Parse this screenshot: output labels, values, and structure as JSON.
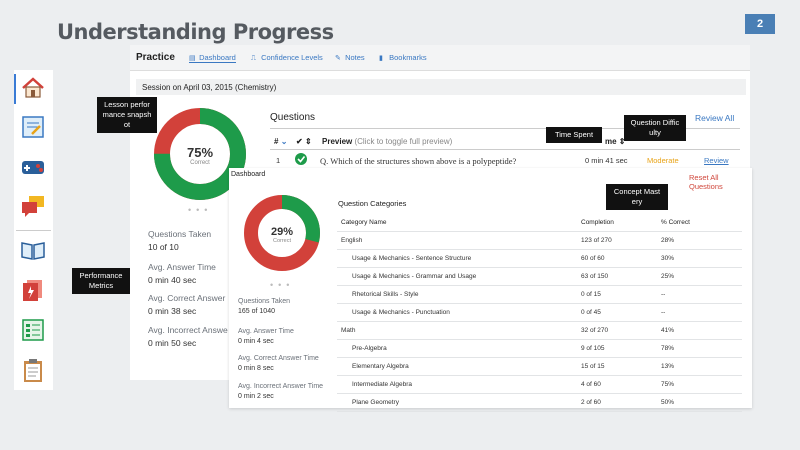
{
  "slide": {
    "title": "Understanding Progress",
    "page_number": "2"
  },
  "rail": {
    "icons": [
      "home-icon",
      "notepad-icon",
      "game-controller-icon",
      "chat-bubbles-icon",
      "open-book-icon",
      "flashcard-icon",
      "checklist-icon",
      "clipboard-icon"
    ]
  },
  "practice": {
    "title": "Practice",
    "tabs": [
      {
        "label": "Dashboard",
        "icon": "dashboard-icon"
      },
      {
        "label": "Confidence Levels",
        "icon": "confidence-icon"
      },
      {
        "label": "Notes",
        "icon": "pencil-icon"
      },
      {
        "label": "Bookmarks",
        "icon": "bookmark-icon"
      }
    ],
    "session": "Session on April 03, 2015 (Chemistry)",
    "donut": {
      "percent_text": "75%",
      "sublabel": "Correct",
      "value": 0.75
    },
    "stats": [
      {
        "label": "Questions Taken",
        "value": "10 of 10"
      },
      {
        "label": "Avg. Answer Time",
        "value": "0 min 40 sec"
      },
      {
        "label": "Avg. Correct Answer",
        "value": "0 min 38 sec"
      },
      {
        "label": "Avg. Incorrect Answe",
        "value": "0 min 50 sec"
      }
    ],
    "questions": {
      "title": "Questions",
      "review_all": "Review All",
      "col_num": "#",
      "col_check": "✔",
      "col_preview": "Preview",
      "col_preview_hint": "(Click to toggle full preview)",
      "col_time": "me",
      "row": {
        "num": "1",
        "text": "Q. Which of the structures shown above is a polypeptide?",
        "time": "0 min 41 sec",
        "difficulty": "Moderate",
        "action": "Review"
      }
    }
  },
  "dashboard": {
    "label": "Dashboard",
    "reset": "Reset All Questions",
    "donut": {
      "percent_text": "29%",
      "sublabel": "Correct",
      "value": 0.29
    },
    "stats": [
      {
        "label": "Questions Taken",
        "value": "165 of 1040"
      },
      {
        "label": "Avg. Answer Time",
        "value": "0 min 4 sec"
      },
      {
        "label": "Avg. Correct Answer Time",
        "value": "0 min 8 sec"
      },
      {
        "label": "Avg. Incorrect Answer Time",
        "value": "0 min 2 sec"
      }
    ],
    "categories_title": "Question Categories",
    "columns": [
      "Category Name",
      "Completion",
      "% Correct"
    ],
    "rows": [
      {
        "name": "English",
        "completion": "123 of 270",
        "correct": "28%",
        "sub": false
      },
      {
        "name": "Usage & Mechanics - Sentence Structure",
        "completion": "60 of 60",
        "correct": "30%",
        "sub": true
      },
      {
        "name": "Usage & Mechanics - Grammar and Usage",
        "completion": "63 of 150",
        "correct": "25%",
        "sub": true
      },
      {
        "name": "Rhetorical Skills - Style",
        "completion": "0 of 15",
        "correct": "--",
        "sub": true
      },
      {
        "name": "Usage & Mechanics - Punctuation",
        "completion": "0 of 45",
        "correct": "--",
        "sub": true
      },
      {
        "name": "Math",
        "completion": "32 of 270",
        "correct": "41%",
        "sub": false
      },
      {
        "name": "Pre-Algebra",
        "completion": "9 of 105",
        "correct": "78%",
        "sub": true
      },
      {
        "name": "Elementary Algebra",
        "completion": "15 of 15",
        "correct": "13%",
        "sub": true
      },
      {
        "name": "Intermediate Algebra",
        "completion": "4 of 60",
        "correct": "75%",
        "sub": true
      },
      {
        "name": "Plane Geometry",
        "completion": "2 of 60",
        "correct": "50%",
        "sub": true
      }
    ]
  },
  "callouts": {
    "lesson": "Lesson perfor mance snapsh ot",
    "time_spent": "Time Spent",
    "difficulty": "Question Diffic ulty",
    "mastery": "Concept Mast ery",
    "performance": "Performance Metrics"
  },
  "colors": {
    "green": "#1e9b4a",
    "red": "#d2413a",
    "accent": "#3a78c2",
    "moderate": "#e8a317"
  }
}
